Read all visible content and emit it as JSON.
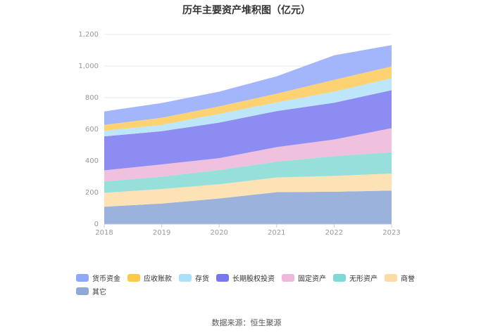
{
  "chart_data": {
    "type": "area",
    "stacked": true,
    "title": "历年主要资产堆积图（亿元）",
    "xlabel": "",
    "ylabel": "",
    "x": [
      "2018",
      "2019",
      "2020",
      "2021",
      "2022",
      "2023"
    ],
    "ylim": [
      0,
      1200
    ],
    "yticks": [
      0,
      200,
      400,
      600,
      800,
      1000,
      1200
    ],
    "ytick_labels": [
      "0",
      "200",
      "400",
      "600",
      "800",
      "1,000",
      "1,200"
    ],
    "grid": true,
    "legend_position": "bottom-left",
    "series": [
      {
        "name": "其它",
        "color": "#9bb2dc",
        "values": [
          110,
          130,
          162,
          202,
          205,
          212
        ]
      },
      {
        "name": "商誉",
        "color": "#fde2b5",
        "values": [
          88,
          92,
          90,
          93,
          100,
          108
        ]
      },
      {
        "name": "无形资产",
        "color": "#97dfdb",
        "values": [
          72,
          78,
          90,
          100,
          125,
          135
        ]
      },
      {
        "name": "固定资产",
        "color": "#efc1df",
        "values": [
          70,
          78,
          75,
          92,
          105,
          152
        ]
      },
      {
        "name": "长期股权投资",
        "color": "#8c8cf3",
        "values": [
          215,
          210,
          225,
          228,
          233,
          240
        ]
      },
      {
        "name": "存货",
        "color": "#bde6fb",
        "values": [
          35,
          40,
          55,
          55,
          70,
          75
        ]
      },
      {
        "name": "应收账款",
        "color": "#fdd272",
        "values": [
          38,
          45,
          48,
          55,
          75,
          75
        ]
      },
      {
        "name": "货币资金",
        "color": "#a3b6fb",
        "values": [
          85,
          93,
          93,
          110,
          155,
          135
        ]
      }
    ]
  },
  "legend": [
    {
      "label": "货币资金",
      "color": "#8fa8fa"
    },
    {
      "label": "应收账款",
      "color": "#fcc94a"
    },
    {
      "label": "存货",
      "color": "#abdffa"
    },
    {
      "label": "长期股权投资",
      "color": "#7777f0"
    },
    {
      "label": "固定资产",
      "color": "#f0b7da"
    },
    {
      "label": "无形资产",
      "color": "#7fd9d4"
    },
    {
      "label": "商誉",
      "color": "#fddba6"
    },
    {
      "label": "其它",
      "color": "#8ea8d8"
    }
  ],
  "source": "数据来源：恒生聚源"
}
